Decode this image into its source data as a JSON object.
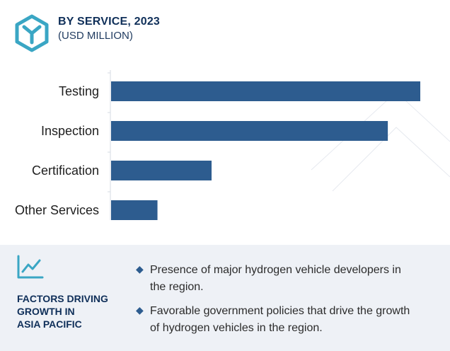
{
  "header": {
    "title": "BY SERVICE, 2023",
    "subtitle": "(USD MILLION)",
    "icon": "hexagon-logo-icon"
  },
  "colors": {
    "accent": "#3aa6c4",
    "bar": "#2d5c8f",
    "title": "#0f2f59",
    "panel_bg": "#eef1f6"
  },
  "chart_data": {
    "type": "bar",
    "orientation": "horizontal",
    "title": "BY SERVICE, 2023",
    "subtitle": "(USD MILLION)",
    "categories": [
      "Testing",
      "Inspection",
      "Certification",
      "Other Services"
    ],
    "values": [
      100,
      89.5,
      32.5,
      15
    ],
    "xlim": [
      0,
      100
    ],
    "grid": false,
    "legend": "none"
  },
  "factors": {
    "icon": "trend-line-icon",
    "title_lines": [
      "FACTORS DRIVING",
      "GROWTH IN",
      "ASIA PACIFIC"
    ],
    "bullets": [
      {
        "line1": "Presence of major hydrogen vehicle developers in",
        "line2": "the region."
      },
      {
        "line1": "Favorable government policies that drive the growth",
        "line2": "of hydrogen vehicles in the region."
      }
    ]
  }
}
